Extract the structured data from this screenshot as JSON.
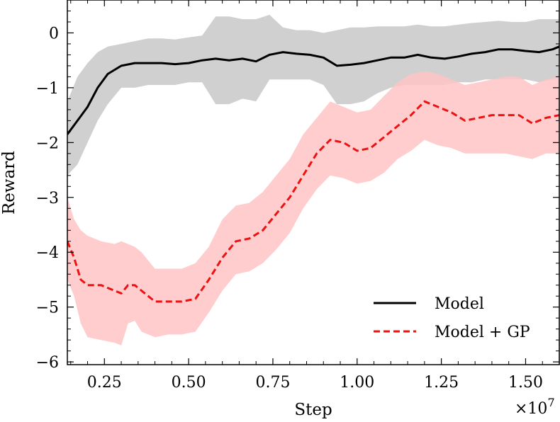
{
  "chart_data": {
    "type": "line",
    "xlabel": "Step",
    "ylabel": "Reward",
    "x_multiplier_label": "×10",
    "x_multiplier_exponent": "7",
    "xlim": [
      0.14,
      1.6
    ],
    "ylim": [
      -6.05,
      0.6
    ],
    "x_ticks": [
      0.25,
      0.5,
      0.75,
      1.0,
      1.25,
      1.5
    ],
    "x_tick_labels": [
      "0.25",
      "0.50",
      "0.75",
      "1.00",
      "1.25",
      "1.50"
    ],
    "y_ticks": [
      0,
      -1,
      -2,
      -3,
      -4,
      -5,
      -6
    ],
    "y_tick_labels": [
      "0",
      "−1",
      "−2",
      "−3",
      "−4",
      "−5",
      "−6"
    ],
    "grid": false,
    "legend_position": "bottom-right",
    "series": [
      {
        "name": "Model",
        "color": "#000000",
        "band_color": "#c8c8c8",
        "line_style": "solid",
        "x": [
          0.14,
          0.17,
          0.2,
          0.23,
          0.26,
          0.3,
          0.34,
          0.38,
          0.42,
          0.46,
          0.5,
          0.54,
          0.58,
          0.62,
          0.66,
          0.7,
          0.74,
          0.78,
          0.82,
          0.86,
          0.9,
          0.94,
          0.98,
          1.02,
          1.06,
          1.1,
          1.14,
          1.18,
          1.22,
          1.26,
          1.3,
          1.34,
          1.38,
          1.42,
          1.46,
          1.5,
          1.54,
          1.58,
          1.6
        ],
        "y": [
          -1.85,
          -1.6,
          -1.35,
          -1.0,
          -0.75,
          -0.6,
          -0.55,
          -0.55,
          -0.55,
          -0.57,
          -0.55,
          -0.5,
          -0.47,
          -0.5,
          -0.47,
          -0.52,
          -0.4,
          -0.35,
          -0.38,
          -0.4,
          -0.45,
          -0.6,
          -0.58,
          -0.55,
          -0.5,
          -0.45,
          -0.45,
          -0.4,
          -0.45,
          -0.47,
          -0.43,
          -0.38,
          -0.35,
          -0.3,
          -0.3,
          -0.33,
          -0.35,
          -0.3,
          -0.25
        ],
        "lower": [
          -2.6,
          -2.4,
          -2.0,
          -1.6,
          -1.3,
          -1.0,
          -1.0,
          -0.95,
          -0.95,
          -0.95,
          -0.9,
          -0.9,
          -1.3,
          -1.3,
          -1.2,
          -1.25,
          -0.85,
          -0.85,
          -0.85,
          -0.85,
          -0.95,
          -1.3,
          -1.3,
          -1.25,
          -1.1,
          -1.0,
          -0.95,
          -0.95,
          -0.95,
          -0.95,
          -0.9,
          -0.9,
          -0.85,
          -0.85,
          -0.85,
          -0.85,
          -0.9,
          -0.85,
          -0.85
        ],
        "upper": [
          -1.25,
          -0.8,
          -0.55,
          -0.35,
          -0.25,
          -0.2,
          -0.15,
          -0.1,
          -0.1,
          -0.12,
          -0.08,
          -0.05,
          0.3,
          0.3,
          0.25,
          0.25,
          0.33,
          0.1,
          0.05,
          0.05,
          0.0,
          0.05,
          0.1,
          0.1,
          0.12,
          0.12,
          0.12,
          0.15,
          0.12,
          0.12,
          0.15,
          0.18,
          0.2,
          0.22,
          0.2,
          0.2,
          0.25,
          0.25,
          0.25
        ]
      },
      {
        "name": "Model + GP",
        "color": "#ee1111",
        "band_color": "#ffc4c4",
        "line_style": "dashed",
        "x": [
          0.14,
          0.16,
          0.18,
          0.2,
          0.24,
          0.28,
          0.3,
          0.32,
          0.34,
          0.36,
          0.4,
          0.44,
          0.48,
          0.52,
          0.56,
          0.6,
          0.64,
          0.68,
          0.72,
          0.76,
          0.8,
          0.84,
          0.88,
          0.92,
          0.96,
          1.0,
          1.04,
          1.08,
          1.12,
          1.16,
          1.2,
          1.24,
          1.28,
          1.32,
          1.36,
          1.4,
          1.44,
          1.48,
          1.52,
          1.56,
          1.6
        ],
        "y": [
          -3.8,
          -4.1,
          -4.5,
          -4.6,
          -4.6,
          -4.7,
          -4.75,
          -4.6,
          -4.6,
          -4.7,
          -4.9,
          -4.9,
          -4.9,
          -4.85,
          -4.5,
          -4.1,
          -3.8,
          -3.75,
          -3.6,
          -3.3,
          -3.0,
          -2.6,
          -2.2,
          -1.95,
          -2.0,
          -2.15,
          -2.1,
          -1.9,
          -1.7,
          -1.5,
          -1.25,
          -1.35,
          -1.45,
          -1.6,
          -1.55,
          -1.5,
          -1.5,
          -1.5,
          -1.65,
          -1.55,
          -1.5
        ],
        "lower": [
          -4.5,
          -4.8,
          -5.3,
          -5.55,
          -5.6,
          -5.65,
          -5.7,
          -5.3,
          -5.25,
          -5.45,
          -5.55,
          -5.5,
          -5.5,
          -5.45,
          -5.1,
          -4.7,
          -4.4,
          -4.35,
          -4.2,
          -3.95,
          -3.65,
          -3.2,
          -2.85,
          -2.6,
          -2.65,
          -2.75,
          -2.7,
          -2.55,
          -2.3,
          -2.15,
          -1.95,
          -2.05,
          -2.1,
          -2.2,
          -2.2,
          -2.2,
          -2.2,
          -2.25,
          -2.3,
          -2.2,
          -2.2
        ],
        "upper": [
          -3.0,
          -3.4,
          -3.6,
          -3.7,
          -3.8,
          -3.85,
          -3.8,
          -3.85,
          -3.9,
          -4.0,
          -4.3,
          -4.3,
          -4.3,
          -4.2,
          -3.9,
          -3.4,
          -3.15,
          -3.1,
          -2.9,
          -2.6,
          -2.3,
          -1.85,
          -1.55,
          -1.25,
          -1.35,
          -1.45,
          -1.4,
          -1.15,
          -0.9,
          -0.75,
          -0.7,
          -0.75,
          -0.85,
          -0.95,
          -0.9,
          -0.85,
          -0.8,
          -0.8,
          -0.95,
          -0.85,
          -0.8
        ]
      }
    ]
  }
}
